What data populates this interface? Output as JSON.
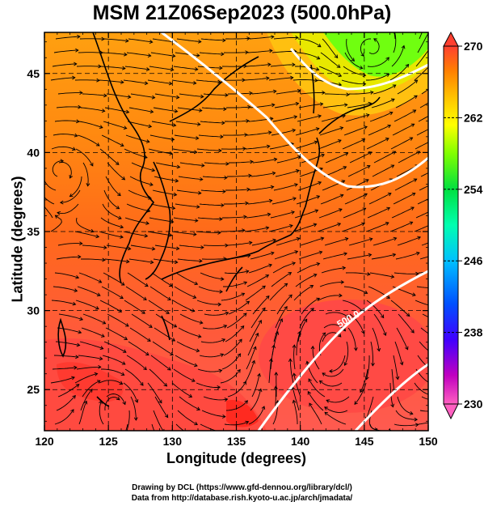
{
  "title": "MSM 21Z06Sep2023 (500.0hPa)",
  "map": {
    "xlabel": "Longitude (degrees)",
    "ylabel": "Latitude  (degrees)",
    "xlim": [
      120,
      150
    ],
    "ylim": [
      22.4,
      47.6
    ],
    "xticks": [
      120,
      125,
      130,
      135,
      140,
      145,
      150
    ],
    "yticks": [
      25,
      30,
      35,
      40,
      45
    ],
    "field": "temperature (K)",
    "overlay": "streamlines"
  },
  "colorbar": {
    "min": 230,
    "max": 270,
    "tick_labels": [
      "270",
      "262",
      "254",
      "246",
      "238",
      "230"
    ],
    "colors": [
      "#ff0080",
      "#c000c0",
      "#4000ff",
      "#0040ff",
      "#00c0ff",
      "#00ffb0",
      "#00e040",
      "#80ff00",
      "#ffff00",
      "#ffc000",
      "#ff8000",
      "#ff4000"
    ]
  },
  "annotations": {
    "contour_label": "500.0"
  },
  "credits": {
    "line1": "Drawing by DCL (https://www.gfd-dennou.org/library/dcl/)",
    "line2": "Data from http://database.rish.kyoto-u.ac.jp/arch/jmadata/"
  }
}
